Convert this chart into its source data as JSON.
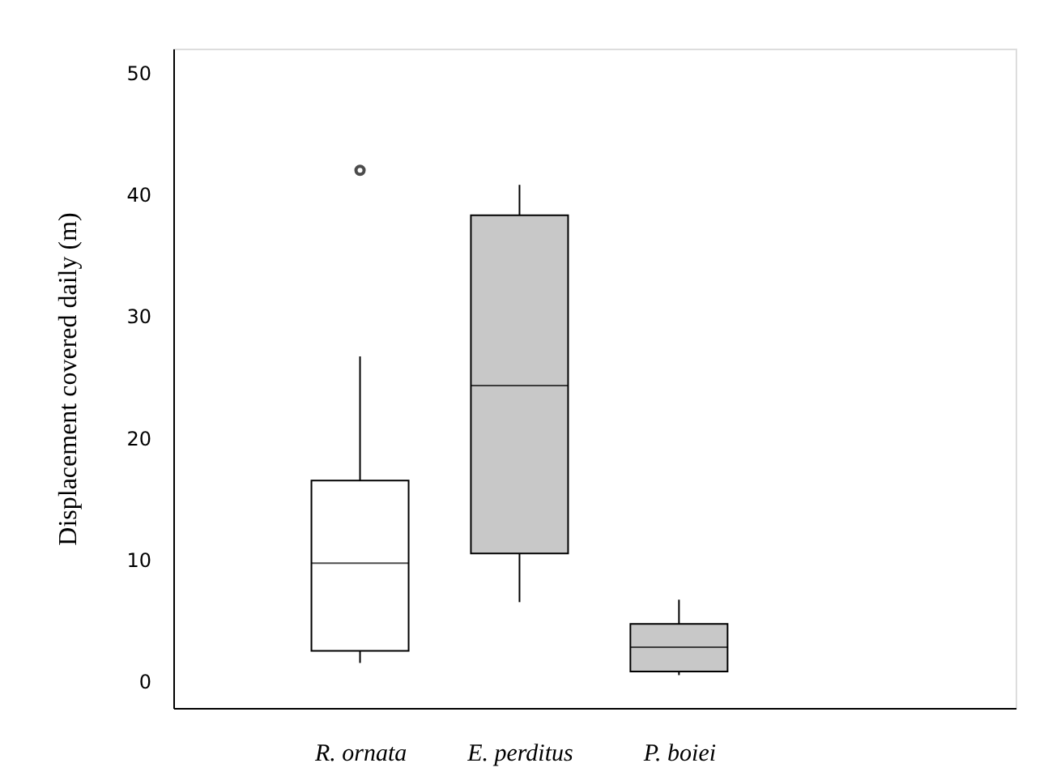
{
  "chart_data": {
    "type": "box",
    "ylabel": "Displacement covered daily  (m)",
    "categories": [
      "R. ornata",
      "E. perditus",
      "P. boiei"
    ],
    "boxes": [
      {
        "low": 1.5,
        "q1": 2.5,
        "median": 9.7,
        "q3": 16.5,
        "high": 26.7,
        "outliers": [
          42
        ]
      },
      {
        "low": 6.5,
        "q1": 10.5,
        "median": 24.3,
        "q3": 38.3,
        "high": 40.8
      },
      {
        "low": 0.5,
        "q1": 0.8,
        "median": 2.8,
        "q3": 4.7,
        "high": 6.7
      }
    ],
    "colors": [
      "#ffffff",
      "#c8c8c8",
      "#c8c8c8"
    ],
    "ylim": [
      -2.2,
      52
    ],
    "yticks": [
      0,
      10,
      20,
      30,
      40,
      50
    ],
    "grid": false
  }
}
